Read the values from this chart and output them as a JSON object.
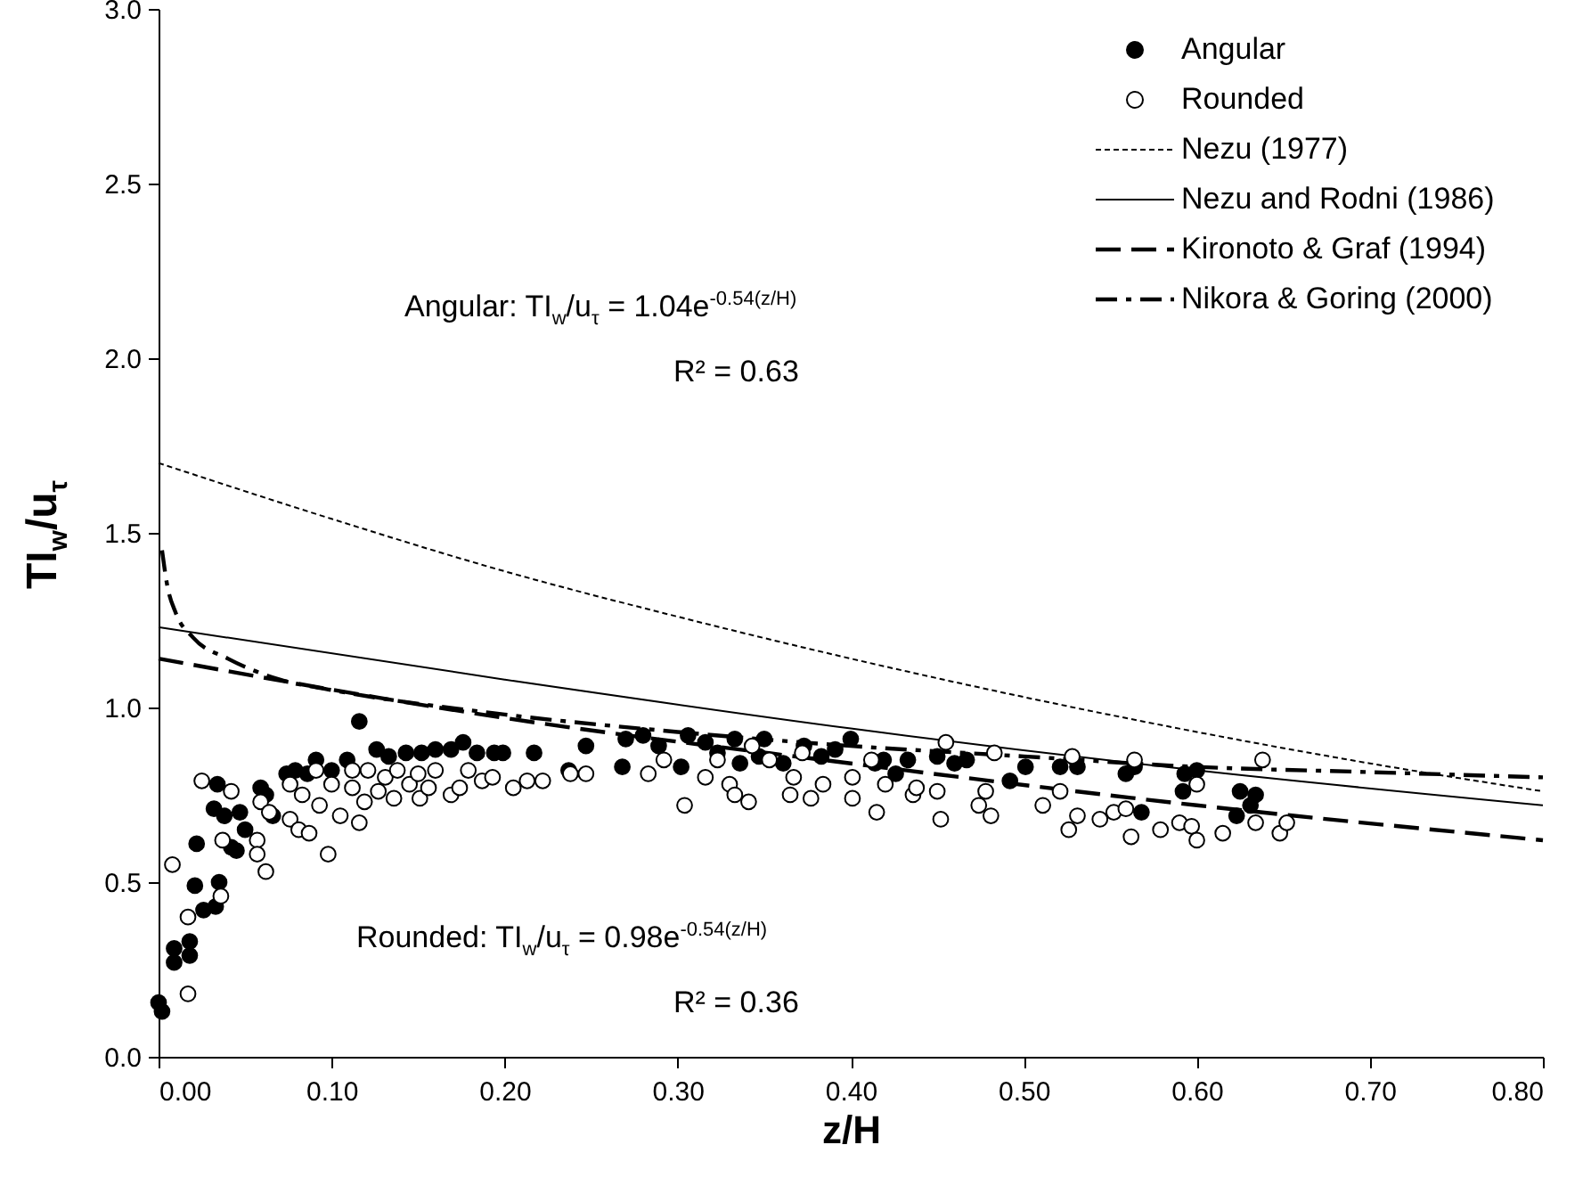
{
  "chart_data": {
    "type": "scatter",
    "xlabel": "z/H",
    "ylabel": "TI$_{w}$/u$_{τ}$",
    "xlim": [
      0,
      0.8
    ],
    "ylim": [
      0,
      3
    ],
    "xticks": [
      {
        "value": 0,
        "label": "0.00"
      },
      {
        "value": 0.1,
        "label": "0.10"
      },
      {
        "value": 0.2,
        "label": "0.20"
      },
      {
        "value": 0.3,
        "label": "0.30"
      },
      {
        "value": 0.4,
        "label": "0.40"
      },
      {
        "value": 0.5,
        "label": "0.50"
      },
      {
        "value": 0.6,
        "label": "0.60"
      },
      {
        "value": 0.7,
        "label": "0.70"
      },
      {
        "value": 0.8,
        "label": "0.80"
      }
    ],
    "yticks": [
      {
        "value": 0,
        "label": "0.0"
      },
      {
        "value": 0.5,
        "label": "0.5"
      },
      {
        "value": 1,
        "label": "1.0"
      },
      {
        "value": 1.5,
        "label": "1.5"
      },
      {
        "value": 2,
        "label": "2.0"
      },
      {
        "value": 2.5,
        "label": "2.5"
      },
      {
        "value": 3,
        "label": "3.0"
      }
    ],
    "grid": false,
    "legend": "top right",
    "annotations": [
      "Angular: TI$_{w}$/u$_{τ}$ = 1.04e$^{-0.54(z/H)}$",
      "R² = 0.63",
      "Rounded: TI$_{w}$/u$_{τ}$ = 0.98e$^{-0.54(z/H)}$",
      "R² = 0.36"
    ],
    "series": [
      {
        "name": "Angular",
        "marker": "circle",
        "color": "#000000",
        "x": [
          0.0,
          0.002,
          0.009,
          0.009,
          0.018,
          0.018,
          0.022,
          0.021,
          0.026,
          0.033,
          0.035,
          0.034,
          0.032,
          0.038,
          0.042,
          0.045,
          0.047,
          0.05,
          0.059,
          0.062,
          0.066,
          0.074,
          0.079,
          0.086,
          0.091,
          0.1,
          0.109,
          0.116,
          0.126,
          0.133,
          0.143,
          0.152,
          0.16,
          0.169,
          0.176,
          0.184,
          0.194,
          0.199,
          0.217,
          0.237,
          0.247,
          0.268,
          0.27,
          0.28,
          0.289,
          0.302,
          0.306,
          0.316,
          0.323,
          0.333,
          0.336,
          0.347,
          0.35,
          0.361,
          0.373,
          0.383,
          0.391,
          0.4,
          0.414,
          0.419,
          0.433,
          0.426,
          0.45,
          0.46,
          0.467,
          0.501,
          0.492,
          0.521,
          0.531,
          0.559,
          0.564,
          0.568,
          0.593,
          0.6,
          0.592,
          0.625,
          0.631,
          0.623,
          0.634
        ],
        "values": [
          0.155,
          0.13,
          0.27,
          0.31,
          0.33,
          0.29,
          0.61,
          0.49,
          0.42,
          0.43,
          0.5,
          0.78,
          0.71,
          0.69,
          0.6,
          0.59,
          0.7,
          0.65,
          0.77,
          0.75,
          0.69,
          0.81,
          0.82,
          0.81,
          0.85,
          0.82,
          0.85,
          0.96,
          0.88,
          0.86,
          0.87,
          0.87,
          0.88,
          0.88,
          0.9,
          0.87,
          0.87,
          0.87,
          0.87,
          0.82,
          0.89,
          0.83,
          0.91,
          0.92,
          0.89,
          0.83,
          0.92,
          0.9,
          0.87,
          0.91,
          0.84,
          0.86,
          0.91,
          0.84,
          0.89,
          0.86,
          0.88,
          0.91,
          0.84,
          0.85,
          0.85,
          0.81,
          0.86,
          0.84,
          0.85,
          0.83,
          0.79,
          0.83,
          0.83,
          0.81,
          0.83,
          0.7,
          0.81,
          0.82,
          0.76,
          0.76,
          0.72,
          0.69,
          0.75
        ]
      },
      {
        "name": "Rounded",
        "marker": "circle",
        "color": "#ffffff",
        "x": [
          0.008,
          0.017,
          0.017,
          0.025,
          0.037,
          0.036,
          0.042,
          0.057,
          0.057,
          0.062,
          0.059,
          0.064,
          0.076,
          0.076,
          0.081,
          0.087,
          0.083,
          0.091,
          0.093,
          0.098,
          0.1,
          0.105,
          0.112,
          0.112,
          0.116,
          0.119,
          0.121,
          0.127,
          0.131,
          0.136,
          0.138,
          0.145,
          0.15,
          0.151,
          0.156,
          0.16,
          0.169,
          0.174,
          0.179,
          0.187,
          0.193,
          0.205,
          0.213,
          0.222,
          0.238,
          0.247,
          0.283,
          0.292,
          0.304,
          0.316,
          0.323,
          0.33,
          0.333,
          0.341,
          0.343,
          0.353,
          0.365,
          0.367,
          0.377,
          0.372,
          0.384,
          0.401,
          0.401,
          0.412,
          0.415,
          0.42,
          0.436,
          0.438,
          0.45,
          0.452,
          0.455,
          0.474,
          0.481,
          0.478,
          0.483,
          0.511,
          0.521,
          0.528,
          0.526,
          0.531,
          0.544,
          0.552,
          0.559,
          0.562,
          0.564,
          0.579,
          0.59,
          0.6,
          0.597,
          0.6,
          0.615,
          0.634,
          0.638,
          0.648,
          0.652
        ],
        "values": [
          0.55,
          0.18,
          0.4,
          0.79,
          0.62,
          0.46,
          0.76,
          0.62,
          0.58,
          0.53,
          0.73,
          0.7,
          0.78,
          0.68,
          0.65,
          0.64,
          0.75,
          0.82,
          0.72,
          0.58,
          0.78,
          0.69,
          0.82,
          0.77,
          0.67,
          0.73,
          0.82,
          0.76,
          0.8,
          0.74,
          0.82,
          0.78,
          0.81,
          0.74,
          0.77,
          0.82,
          0.75,
          0.77,
          0.82,
          0.79,
          0.8,
          0.77,
          0.79,
          0.79,
          0.81,
          0.81,
          0.81,
          0.85,
          0.72,
          0.8,
          0.85,
          0.78,
          0.75,
          0.73,
          0.89,
          0.85,
          0.75,
          0.8,
          0.74,
          0.87,
          0.78,
          0.74,
          0.8,
          0.85,
          0.7,
          0.78,
          0.75,
          0.77,
          0.76,
          0.68,
          0.9,
          0.72,
          0.69,
          0.76,
          0.87,
          0.72,
          0.76,
          0.86,
          0.65,
          0.69,
          0.68,
          0.7,
          0.71,
          0.63,
          0.85,
          0.65,
          0.67,
          0.78,
          0.66,
          0.62,
          0.64,
          0.67,
          0.85,
          0.64,
          0.67
        ]
      },
      {
        "name": "Nezu (1977)",
        "type": "line",
        "color": "#000000",
        "line_style": "dotted",
        "x": [
          0,
          0.1,
          0.2,
          0.3,
          0.4,
          0.5,
          0.6,
          0.7,
          0.8
        ],
        "values": [
          1.7,
          1.54,
          1.39,
          1.26,
          1.14,
          1.03,
          0.93,
          0.84,
          0.76
        ]
      },
      {
        "name": "Nezu and Rodni (1986)",
        "type": "line",
        "color": "#000000",
        "line_style": "solid",
        "x": [
          0,
          0.2,
          0.4,
          0.6,
          0.8
        ],
        "values": [
          1.23,
          1.08,
          0.94,
          0.82,
          0.72
        ]
      },
      {
        "name": "Kironoto & Graf (1994)",
        "type": "line",
        "color": "#000000",
        "line_style": "dashed",
        "x": [
          0,
          0.2,
          0.4,
          0.6,
          0.8
        ],
        "values": [
          1.14,
          0.97,
          0.84,
          0.72,
          0.62
        ]
      },
      {
        "name": "Nikora & Goring (2000)",
        "type": "line",
        "color": "#000000",
        "line_style": "dashdot",
        "x": [
          0.002,
          0.005,
          0.01,
          0.02,
          0.04,
          0.07,
          0.1,
          0.2,
          0.3,
          0.4,
          0.5,
          0.6,
          0.7,
          0.8
        ],
        "values": [
          1.45,
          1.35,
          1.27,
          1.2,
          1.14,
          1.08,
          1.05,
          0.98,
          0.93,
          0.89,
          0.86,
          0.83,
          0.815,
          0.8
        ]
      }
    ]
  }
}
